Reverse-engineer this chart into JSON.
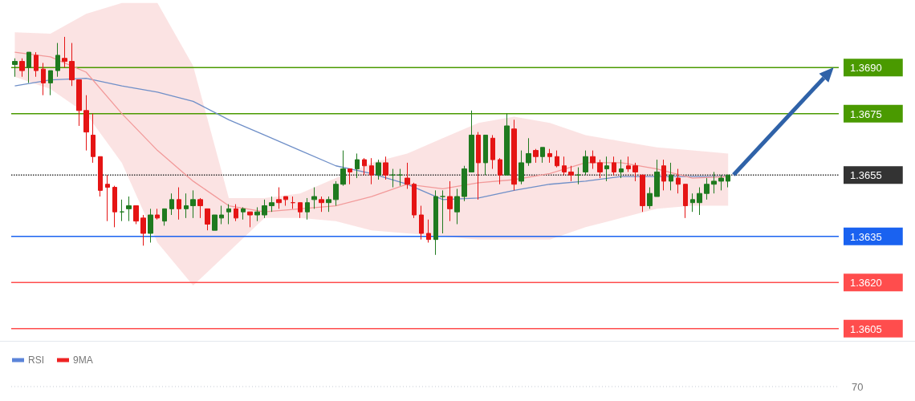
{
  "chart_data": [
    {
      "type": "candlestick",
      "categories": [
        null,
        null,
        null,
        null,
        null,
        null,
        null,
        null,
        null,
        null,
        null,
        null,
        null,
        null,
        null,
        null,
        null,
        null,
        null,
        null,
        null,
        null,
        null,
        null,
        null,
        null,
        null,
        null,
        null,
        null,
        null,
        null,
        null,
        null,
        null,
        null,
        null,
        null,
        null,
        null,
        null,
        null,
        null,
        null,
        null,
        null,
        null,
        null,
        null,
        null,
        null,
        null,
        null,
        null,
        null,
        null,
        null,
        null,
        null,
        null,
        null,
        null,
        null,
        null,
        null,
        null,
        null,
        null,
        null,
        null,
        null,
        null,
        null,
        null,
        null,
        null,
        null,
        null,
        null,
        null,
        null,
        null,
        null,
        null,
        null,
        null,
        null,
        null,
        null,
        null,
        null,
        null,
        null,
        null,
        null,
        null,
        null,
        null,
        null,
        null,
        null,
        null,
        null,
        null,
        null,
        null,
        null,
        null,
        null,
        null,
        null,
        null,
        null,
        null,
        null,
        null
      ],
      "ohlc": [
        [
          1.3691,
          1.3693,
          1.3687,
          1.3692
        ],
        [
          1.3692,
          1.3693,
          1.3687,
          1.3689
        ],
        [
          1.369,
          1.3695,
          1.3685,
          1.3695
        ],
        [
          1.3694,
          1.3695,
          1.3687,
          1.3689
        ],
        [
          1.36895,
          1.36915,
          1.3681,
          1.3685
        ],
        [
          1.3685,
          1.3689,
          1.3681,
          1.3689
        ],
        [
          1.3689,
          1.3698,
          1.3687,
          1.3694
        ],
        [
          1.3693,
          1.37,
          1.369,
          1.3692
        ],
        [
          1.3692,
          1.3698,
          1.3684,
          1.3686
        ],
        [
          1.3686,
          1.3686,
          1.3671,
          1.3676
        ],
        [
          1.3676,
          1.3681,
          1.3663,
          1.3669
        ],
        [
          1.3668,
          1.3675,
          1.3659,
          1.3661
        ],
        [
          1.3661,
          1.3661,
          1.3648,
          1.365
        ],
        [
          1.3652,
          1.3655,
          1.364,
          1.3651
        ],
        [
          1.3651,
          1.36515,
          1.3638,
          1.3643
        ],
        [
          1.3643,
          1.3647,
          1.364,
          1.3643
        ],
        [
          1.3644,
          1.3648,
          1.364,
          1.3645
        ],
        [
          1.3645,
          1.3645,
          1.3639,
          1.364
        ],
        [
          1.3641,
          1.3642,
          1.3632,
          1.3636
        ],
        [
          1.3636,
          1.3644,
          1.3633,
          1.3642
        ],
        [
          1.3642,
          1.3644,
          1.36405,
          1.3641
        ],
        [
          1.364,
          1.3644,
          1.36385,
          1.3644
        ],
        [
          1.3644,
          1.3649,
          1.3642,
          1.3647
        ],
        [
          1.3647,
          1.3651,
          1.36405,
          1.3644
        ],
        [
          1.3644,
          1.3649,
          1.3641,
          1.3645
        ],
        [
          1.3645,
          1.365,
          1.3641,
          1.3647
        ],
        [
          1.3647,
          1.36475,
          1.3641,
          1.3645
        ],
        [
          1.3644,
          1.3644,
          1.3637,
          1.3639
        ],
        [
          1.3637,
          1.3642,
          1.3637,
          1.3642
        ],
        [
          1.3641,
          1.3645,
          1.3639,
          1.3642
        ],
        [
          1.3643,
          1.36455,
          1.3639,
          1.3644
        ],
        [
          1.3644,
          1.36455,
          1.364,
          1.3641
        ],
        [
          1.3643,
          1.36445,
          1.36405,
          1.3644
        ],
        [
          1.3643,
          1.3643,
          1.3638,
          1.3642
        ],
        [
          1.3642,
          1.36445,
          1.364,
          1.3643
        ],
        [
          1.3642,
          1.3647,
          1.3641,
          1.3645
        ],
        [
          1.3645,
          1.3648,
          1.3643,
          1.3646
        ],
        [
          1.3647,
          1.3651,
          1.3644,
          1.3646
        ],
        [
          1.3648,
          1.3648,
          1.3645,
          1.3647
        ],
        [
          1.3646,
          1.3648,
          1.3644,
          1.3646
        ],
        [
          1.3646,
          1.3646,
          1.3641,
          1.3643
        ],
        [
          1.3643,
          1.36475,
          1.36405,
          1.3646
        ],
        [
          1.3647,
          1.3651,
          1.3644,
          1.3648
        ],
        [
          1.3647,
          1.3648,
          1.3643,
          1.3646
        ],
        [
          1.3646,
          1.3648,
          1.3643,
          1.3647
        ],
        [
          1.3647,
          1.3653,
          1.3645,
          1.3652
        ],
        [
          1.3652,
          1.3663,
          1.36515,
          1.3657
        ],
        [
          1.3657,
          1.3657,
          1.3652,
          1.3656
        ],
        [
          1.3657,
          1.3662,
          1.3654,
          1.366
        ],
        [
          1.366,
          1.36605,
          1.3655,
          1.3658
        ],
        [
          1.3658,
          1.36605,
          1.3652,
          1.3655
        ],
        [
          1.3655,
          1.366,
          1.36535,
          1.3659
        ],
        [
          1.3659,
          1.3661,
          1.36535,
          1.3655
        ],
        [
          1.3655,
          1.3657,
          1.3651,
          1.3655
        ],
        [
          1.3655,
          1.3657,
          1.36515,
          1.3655
        ],
        [
          1.3654,
          1.3659,
          1.36505,
          1.3652
        ],
        [
          1.3652,
          1.36525,
          1.3641,
          1.3642
        ],
        [
          1.3642,
          1.3645,
          1.3634,
          1.3636
        ],
        [
          1.3636,
          1.36405,
          1.3633,
          1.3634
        ],
        [
          1.3634,
          1.365,
          1.3629,
          1.3648
        ],
        [
          1.3648,
          1.365,
          1.3636,
          1.3648
        ],
        [
          1.3648,
          1.3653,
          1.364,
          1.3644
        ],
        [
          1.3643,
          1.36505,
          1.3639,
          1.3648
        ],
        [
          1.3648,
          1.3658,
          1.36465,
          1.3657
        ],
        [
          1.3656,
          1.3676,
          1.3656,
          1.3668
        ],
        [
          1.3668,
          1.3669,
          1.3647,
          1.3659
        ],
        [
          1.3659,
          1.3668,
          1.3655,
          1.3668
        ],
        [
          1.3667,
          1.3668,
          1.3657,
          1.366
        ],
        [
          1.366,
          1.36605,
          1.3652,
          1.3655
        ],
        [
          1.3655,
          1.3675,
          1.3655,
          1.3671
        ],
        [
          1.367,
          1.3673,
          1.365,
          1.3652
        ],
        [
          1.3653,
          1.3663,
          1.3652,
          1.3659
        ],
        [
          1.3659,
          1.3667,
          1.3658,
          1.3662
        ],
        [
          1.3663,
          1.36635,
          1.3659,
          1.3661
        ],
        [
          1.3661,
          1.3664,
          1.3659,
          1.3664
        ],
        [
          1.3662,
          1.36635,
          1.3659,
          1.3661
        ],
        [
          1.3661,
          1.3663,
          1.36575,
          1.3658
        ],
        [
          1.3658,
          1.3661,
          1.3655,
          1.3656
        ],
        [
          1.3656,
          1.3658,
          1.3653,
          1.3655
        ],
        [
          1.3655,
          1.36575,
          1.3652,
          1.3655
        ],
        [
          1.3656,
          1.3663,
          1.3655,
          1.3661
        ],
        [
          1.3661,
          1.3663,
          1.3657,
          1.3659
        ],
        [
          1.3659,
          1.366,
          1.3654,
          1.3656
        ],
        [
          1.3657,
          1.3661,
          1.3653,
          1.3658
        ],
        [
          1.3659,
          1.3661,
          1.3655,
          1.3656
        ],
        [
          1.3656,
          1.366,
          1.3654,
          1.3657
        ],
        [
          1.3658,
          1.3661,
          1.3656,
          1.3657
        ],
        [
          1.3658,
          1.3659,
          1.3653,
          1.3656
        ],
        [
          1.3655,
          1.3655,
          1.3643,
          1.3645
        ],
        [
          1.3645,
          1.3651,
          1.3644,
          1.3649
        ],
        [
          1.3648,
          1.366,
          1.3648,
          1.3656
        ],
        [
          1.3658,
          1.366,
          1.365,
          1.3653
        ],
        [
          1.3653,
          1.3659,
          1.365,
          1.3655
        ],
        [
          1.3654,
          1.3657,
          1.3649,
          1.3652
        ],
        [
          1.3652,
          1.3652,
          1.3641,
          1.3645
        ],
        [
          1.3646,
          1.3649,
          1.3643,
          1.3647
        ],
        [
          1.3646,
          1.3651,
          1.3642,
          1.3649
        ],
        [
          1.3649,
          1.3654,
          1.3647,
          1.3652
        ],
        [
          1.3652,
          1.3656,
          1.3649,
          1.3653
        ],
        [
          1.3653,
          1.3655,
          1.365,
          1.3654
        ],
        [
          1.3653,
          1.3655,
          1.3651,
          1.3655
        ],
        null,
        null,
        null,
        null,
        null,
        null,
        null,
        null,
        null,
        null,
        null,
        null,
        null,
        null,
        null
      ],
      "series": [
        {
          "type": "line",
          "color": "#6f8fc8",
          "values": [
            1.3684,
            null,
            null,
            null,
            null,
            1.3686,
            null,
            null,
            null,
            null,
            1.36865,
            null,
            null,
            null,
            null,
            1.3684,
            null,
            null,
            null,
            null,
            1.3682,
            null,
            null,
            null,
            null,
            1.3679,
            null,
            null,
            null,
            null,
            1.3673,
            null,
            null,
            null,
            null,
            1.3668,
            null,
            null,
            null,
            null,
            1.3663,
            null,
            null,
            null,
            null,
            1.3658,
            null,
            null,
            null,
            null,
            1.36555,
            null,
            null,
            null,
            null,
            1.3652,
            null,
            null,
            null,
            null,
            1.3647,
            null,
            null,
            null,
            null,
            1.36475,
            null,
            null,
            null,
            null,
            1.365,
            null,
            null,
            null,
            null,
            1.3652,
            null,
            null,
            null,
            null,
            1.3653,
            null,
            null,
            null,
            null,
            1.36545,
            null,
            null,
            null,
            null,
            1.36545,
            null,
            null,
            null,
            null,
            1.36545,
            null,
            null,
            null,
            null,
            1.36545,
            null,
            null,
            null,
            null,
            null,
            null,
            null,
            null,
            null,
            null,
            null,
            null,
            null,
            null,
            null
          ]
        },
        {
          "type": "line",
          "color": "#f29a9a",
          "values": [
            1.3695,
            null,
            null,
            null,
            null,
            1.36935,
            null,
            null,
            null,
            null,
            1.36885,
            null,
            null,
            null,
            null,
            1.3675,
            null,
            null,
            null,
            null,
            1.3663,
            null,
            null,
            null,
            null,
            1.3653,
            null,
            null,
            null,
            null,
            1.3645,
            null,
            null,
            null,
            null,
            1.3643,
            null,
            null,
            null,
            null,
            1.3644,
            null,
            null,
            null,
            null,
            1.3645,
            null,
            null,
            null,
            null,
            1.3648,
            null,
            null,
            null,
            null,
            1.3652,
            null,
            null,
            null,
            null,
            1.36505,
            null,
            null,
            null,
            null,
            1.36525,
            null,
            null,
            null,
            null,
            1.36535,
            null,
            null,
            null,
            null,
            1.36555,
            null,
            null,
            null,
            null,
            1.3659,
            null,
            null,
            null,
            null,
            1.3659,
            null,
            null,
            null,
            null,
            1.3657,
            null,
            null,
            null,
            null,
            1.3654,
            null,
            null,
            null,
            null,
            1.36545,
            null,
            null,
            null,
            null,
            null,
            null,
            null,
            null,
            null,
            null,
            null,
            null,
            null,
            null,
            null
          ],
          "upper": [
            1.37015,
            null,
            null,
            null,
            null,
            1.3701,
            null,
            null,
            null,
            null,
            1.37075,
            null,
            null,
            null,
            null,
            1.3711,
            null,
            null,
            null,
            null,
            1.3711,
            null,
            null,
            null,
            null,
            1.36905,
            null,
            null,
            null,
            null,
            1.36475,
            null,
            null,
            null,
            null,
            1.36475,
            null,
            null,
            null,
            null,
            1.3649,
            null,
            null,
            null,
            null,
            1.3654,
            null,
            null,
            null,
            null,
            1.3659,
            null,
            null,
            null,
            null,
            1.3662,
            null,
            null,
            null,
            null,
            1.3667,
            null,
            null,
            null,
            null,
            1.3672,
            null,
            null,
            null,
            null,
            1.3674,
            null,
            null,
            null,
            null,
            1.3672,
            null,
            null,
            null,
            null,
            1.3668,
            null,
            null,
            null,
            null,
            1.3666,
            null,
            null,
            null,
            null,
            1.3664,
            null,
            null,
            null,
            null,
            1.3663,
            null,
            null,
            null,
            null,
            1.3662,
            null,
            null,
            null,
            null,
            null,
            null,
            null,
            null,
            null,
            null,
            null,
            null,
            null,
            null,
            null
          ],
          "lower": [
            1.3687,
            null,
            null,
            null,
            null,
            1.3683,
            null,
            null,
            null,
            null,
            1.3675,
            null,
            null,
            null,
            null,
            1.3659,
            null,
            null,
            null,
            null,
            1.3633,
            null,
            null,
            null,
            null,
            1.3619,
            null,
            null,
            null,
            null,
            1.363,
            null,
            null,
            null,
            null,
            1.3641,
            null,
            null,
            null,
            null,
            1.3641,
            null,
            null,
            null,
            null,
            1.364,
            null,
            null,
            null,
            null,
            1.3637,
            null,
            null,
            null,
            null,
            1.3636,
            null,
            null,
            null,
            null,
            1.3635,
            null,
            null,
            null,
            null,
            1.3634,
            null,
            null,
            null,
            null,
            1.3634,
            null,
            null,
            null,
            null,
            1.3634,
            null,
            null,
            null,
            null,
            1.3638,
            null,
            null,
            null,
            null,
            1.3641,
            null,
            null,
            null,
            null,
            1.3644,
            null,
            null,
            null,
            null,
            1.3645,
            null,
            null,
            null,
            null,
            1.3645,
            null,
            null,
            null,
            null,
            null,
            null,
            null,
            null,
            null,
            null,
            null,
            null,
            null,
            null,
            null
          ]
        }
      ],
      "ylim": [
        1.3601,
        1.3712
      ],
      "yticks": [
        {
          "value": 1.3605,
          "label": "1.3605"
        },
        {
          "value": 1.362,
          "label": "1.3620"
        },
        {
          "value": 1.3635,
          "label": "1.3635"
        },
        {
          "value": 1.3655,
          "label": "1.3655"
        },
        {
          "value": 1.3675,
          "label": "1.3675"
        },
        {
          "value": 1.369,
          "label": "1.3690"
        }
      ],
      "ref_lines": [
        {
          "axis": "y",
          "value": 1.369,
          "color": "#4a9a00"
        },
        {
          "axis": "y",
          "value": 1.3675,
          "color": "#4a9a00"
        },
        {
          "axis": "y",
          "value": 1.3655,
          "color": "#333333",
          "line_style": "dotted"
        },
        {
          "axis": "y",
          "value": 1.3635,
          "color": "#1a62f0"
        },
        {
          "axis": "y",
          "value": 1.362,
          "color": "#ff4d4d"
        },
        {
          "axis": "y",
          "value": 1.3605,
          "color": "#ff4d4d"
        }
      ]
    },
    {
      "type": "other",
      "legend": "top left",
      "annotations": [
        "70"
      ],
      "series": [
        {
          "type": "line",
          "name": "RSI",
          "color": "#5b84d9"
        },
        {
          "type": "line",
          "name": "9MA",
          "color": "#ee2222"
        }
      ]
    }
  ]
}
